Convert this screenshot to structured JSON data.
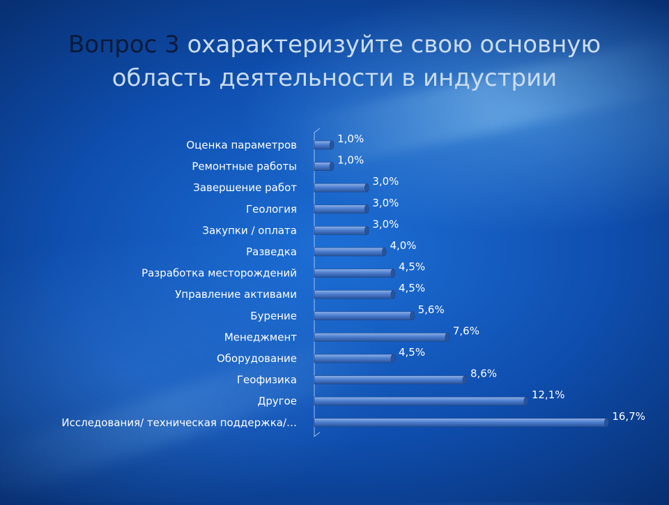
{
  "title": {
    "prefix": "Вопрос 3",
    "text": " охарактеризуйте свою основную область деятельности в индустрии"
  },
  "colors": {
    "bar_light": "#8fb3ea",
    "bar_mid": "#4f7fcf",
    "bar_dark": "#27539c",
    "axis": "#9fc2ee",
    "label": "#ffffff"
  },
  "chart_data": {
    "type": "bar",
    "orientation": "horizontal",
    "categories": [
      "Оценка параметров",
      "Ремонтные работы",
      "Завершение работ",
      "Геология",
      "Закупки / оплата",
      "Разведка",
      "Разработка месторождений",
      "Управление активами",
      "Бурение",
      "Менеджмент",
      "Оборудование",
      "Геофизика",
      "Другое",
      "Исследования/ техническая поддержка/…"
    ],
    "values": [
      1.0,
      1.0,
      3.0,
      3.0,
      3.0,
      4.0,
      4.5,
      4.5,
      5.6,
      7.6,
      4.5,
      8.6,
      12.1,
      16.7
    ],
    "value_labels": [
      "1,0%",
      "1,0%",
      "3,0%",
      "3,0%",
      "3,0%",
      "4,0%",
      "4,5%",
      "4,5%",
      "5,6%",
      "7,6%",
      "4,5%",
      "8,6%",
      "12,1%",
      "16,7%"
    ],
    "xlim": [
      0,
      18
    ],
    "grid": false,
    "legend": "none"
  }
}
